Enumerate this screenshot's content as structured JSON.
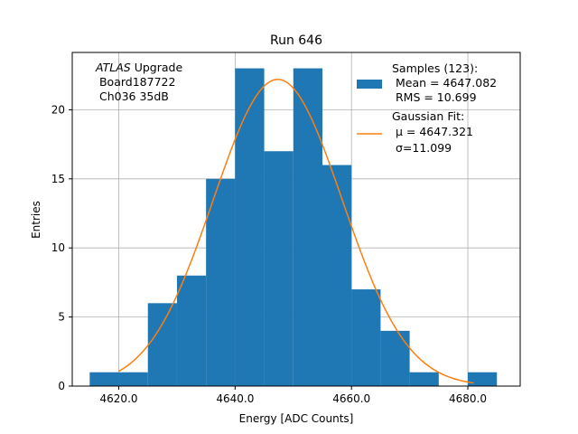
{
  "chart_data": {
    "type": "bar",
    "title": "Run 646",
    "xlabel": "Energy [ADC Counts]",
    "ylabel": "Entries",
    "xlim": [
      4612,
      4689
    ],
    "ylim": [
      0,
      24.15
    ],
    "grid": true,
    "x_ticks": [
      4620,
      4640,
      4660,
      4680
    ],
    "x_tick_labels": [
      "4620.0",
      "4640.0",
      "4660.0",
      "4680.0"
    ],
    "y_ticks": [
      0,
      5,
      10,
      15,
      20
    ],
    "y_tick_labels": [
      "0",
      "5",
      "10",
      "15",
      "20"
    ],
    "bin_edges": [
      4615,
      4620,
      4625,
      4630,
      4635,
      4640,
      4645,
      4650,
      4655,
      4660,
      4665,
      4670,
      4675,
      4680,
      4685
    ],
    "counts": [
      1,
      1,
      6,
      8,
      15,
      23,
      17,
      23,
      16,
      7,
      4,
      1,
      0,
      1
    ],
    "bar_color": "#1f77b4",
    "fit_color": "#ff7f0e",
    "fit": {
      "type": "gaussian",
      "mu": 4647.321,
      "sigma": 11.099,
      "amplitude": 22.2,
      "x_range": [
        4620,
        4681
      ]
    },
    "annotation": {
      "italic": "ATLAS",
      "rest": " Upgrade",
      "line2": " Board187722",
      "line3": " Ch036 35dB"
    },
    "legend": {
      "placement": "top-right",
      "samples_l1": "Samples (123):",
      "samples_l2": " Mean = 4647.082",
      "samples_l3": " RMS = 10.699",
      "fit_l1": "Gaussian Fit:",
      "fit_l2": " μ = 4647.321",
      "fit_l3": " σ=11.099"
    }
  }
}
